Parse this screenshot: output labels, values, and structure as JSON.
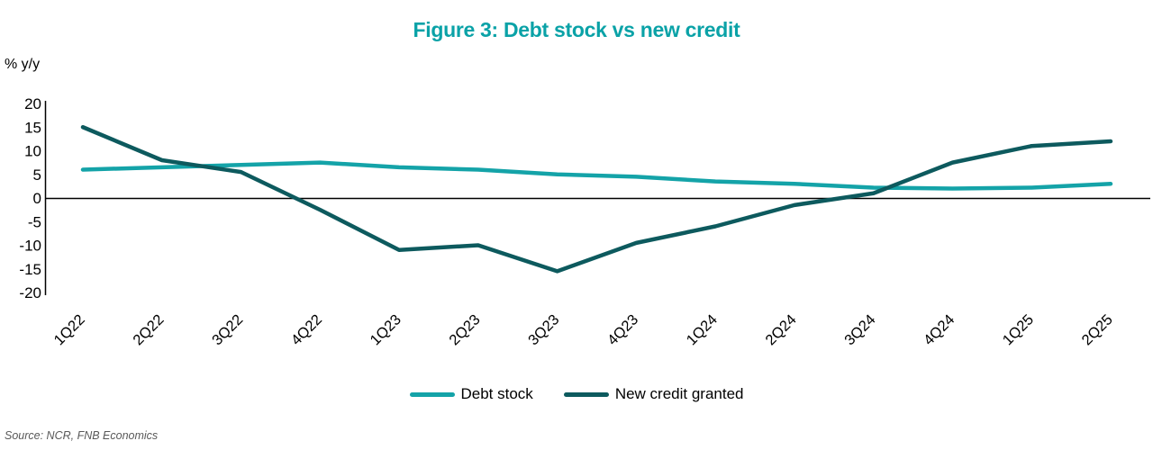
{
  "title": "Figure 3: Debt stock vs new credit",
  "y_axis_unit": "% y/y",
  "source": "Source: NCR, FNB Economics",
  "colors": {
    "title": "#0aa2a7",
    "debt_stock": "#14a3a8",
    "new_credit": "#0d5a5e",
    "axis": "#000000",
    "source_text": "#595959"
  },
  "legend": {
    "items": [
      "Debt stock",
      "New credit granted"
    ]
  },
  "chart_data": {
    "type": "line",
    "title": "Figure 3: Debt stock vs new credit",
    "xlabel": "",
    "ylabel": "% y/y",
    "ylim": [
      -20,
      20
    ],
    "ytick_step": 5,
    "grid": false,
    "legend_position": "bottom",
    "categories": [
      "1Q22",
      "2Q22",
      "3Q22",
      "4Q22",
      "1Q23",
      "2Q23",
      "3Q23",
      "4Q23",
      "1Q24",
      "2Q24",
      "3Q24",
      "4Q24",
      "1Q25",
      "2Q25"
    ],
    "series": [
      {
        "name": "Debt stock",
        "color_key": "debt_stock",
        "values": [
          6,
          6.5,
          7,
          7.5,
          6.5,
          6,
          5,
          4.5,
          3.5,
          3,
          2.2,
          2,
          2.2,
          3
        ]
      },
      {
        "name": "New credit granted",
        "color_key": "new_credit",
        "values": [
          15,
          8,
          5.5,
          -2.5,
          -11,
          -10,
          -15.5,
          -9.5,
          -6,
          -1.5,
          1,
          7.5,
          11,
          12
        ]
      }
    ]
  }
}
